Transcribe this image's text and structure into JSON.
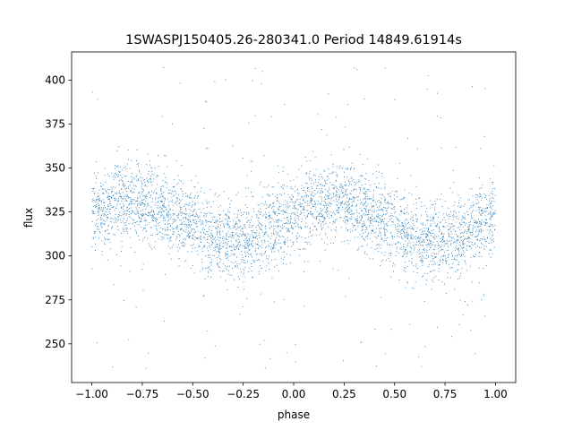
{
  "chart_data": {
    "type": "scatter",
    "title": "1SWASPJ150405.26-280341.0 Period 14849.61914s",
    "xlabel": "phase",
    "ylabel": "flux",
    "xlim": [
      -1.1,
      1.1
    ],
    "ylim": [
      228,
      416
    ],
    "xticks": [
      -1.0,
      -0.75,
      -0.5,
      -0.25,
      0.0,
      0.25,
      0.5,
      0.75,
      1.0
    ],
    "xtick_labels": [
      "−1.00",
      "−0.75",
      "−0.50",
      "−0.25",
      "0.00",
      "0.25",
      "0.50",
      "0.75",
      "1.00"
    ],
    "yticks": [
      250,
      275,
      300,
      325,
      350,
      375,
      400
    ],
    "ytick_labels": [
      "250",
      "275",
      "300",
      "325",
      "350",
      "375",
      "400"
    ],
    "grid": false,
    "marker_color": "#1f77b4",
    "light_curve": {
      "phase_range": [
        -1.0,
        1.0
      ],
      "period_in_phase": 1.0,
      "mean_flux": 320,
      "amplitude": 11,
      "maximum_phase": 0.2,
      "scatter_sigma": 11,
      "outlier_range": [
        236,
        408
      ],
      "point_count": 4200
    }
  }
}
